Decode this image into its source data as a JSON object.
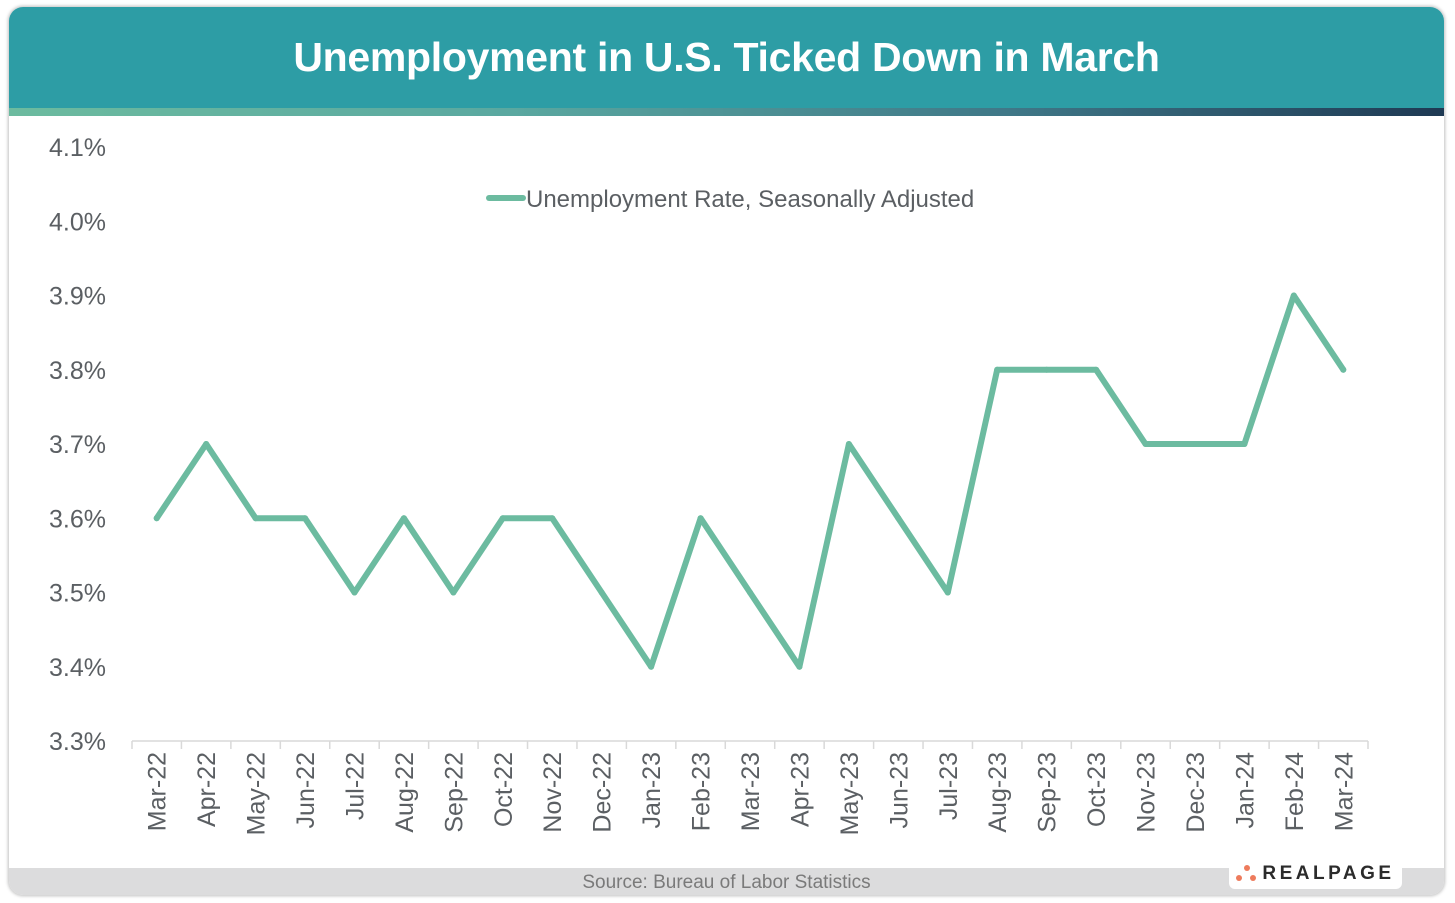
{
  "header": {
    "title": "Unemployment in U.S. Ticked Down in March"
  },
  "footer": {
    "source": "Source: Bureau of Labor Statistics",
    "logo_text": "REALPAGE",
    "logo_icon": "realpage-dots-icon"
  },
  "colors": {
    "header_bg": "#2d9da5",
    "line": "#6cbba0",
    "axis_text": "#5b5f63",
    "logo_dots": "#ee7b5c"
  },
  "chart_data": {
    "type": "line",
    "title": "Unemployment in U.S. Ticked Down in March",
    "xlabel": "",
    "ylabel": "",
    "ylim": [
      3.3,
      4.1
    ],
    "yticks": [
      3.3,
      3.4,
      3.5,
      3.6,
      3.7,
      3.8,
      3.9,
      4.0,
      4.1
    ],
    "ytick_labels": [
      "3.3%",
      "3.4%",
      "3.5%",
      "3.6%",
      "3.7%",
      "3.8%",
      "3.9%",
      "4.0%",
      "4.1%"
    ],
    "grid": false,
    "legend_position": "top-center",
    "categories": [
      "Mar-22",
      "Apr-22",
      "May-22",
      "Jun-22",
      "Jul-22",
      "Aug-22",
      "Sep-22",
      "Oct-22",
      "Nov-22",
      "Dec-22",
      "Jan-23",
      "Feb-23",
      "Mar-23",
      "Apr-23",
      "May-23",
      "Jun-23",
      "Jul-23",
      "Aug-23",
      "Sep-23",
      "Oct-23",
      "Nov-23",
      "Dec-23",
      "Jan-24",
      "Feb-24",
      "Mar-24"
    ],
    "series": [
      {
        "name": "Unemployment Rate, Seasonally Adjusted",
        "color": "#6cbba0",
        "values": [
          3.6,
          3.7,
          3.6,
          3.6,
          3.5,
          3.6,
          3.5,
          3.6,
          3.6,
          3.5,
          3.4,
          3.6,
          3.5,
          3.4,
          3.7,
          3.6,
          3.5,
          3.8,
          3.8,
          3.8,
          3.7,
          3.7,
          3.7,
          3.9,
          3.8
        ]
      }
    ],
    "source": "Source: Bureau of Labor Statistics"
  }
}
